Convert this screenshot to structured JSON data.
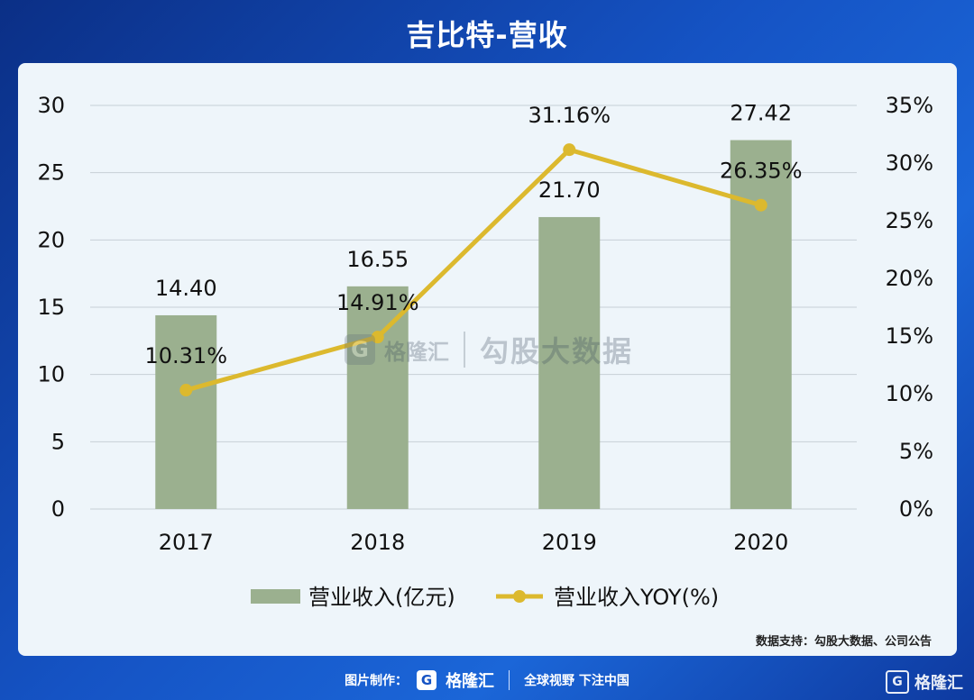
{
  "header": {
    "title": "吉比特-营收"
  },
  "chart_data": {
    "type": "bar",
    "categories": [
      "2017",
      "2018",
      "2019",
      "2020"
    ],
    "series": [
      {
        "name": "营业收入(亿元)",
        "type": "bar",
        "axis": "left",
        "color": "#9bb08f",
        "values": [
          14.4,
          16.55,
          21.7,
          27.42
        ],
        "labels": [
          "14.40",
          "16.55",
          "21.70",
          "27.42"
        ]
      },
      {
        "name": "营业收入YOY(%)",
        "type": "line",
        "axis": "right",
        "color": "#dcb92e",
        "values": [
          10.31,
          14.91,
          31.16,
          26.35
        ],
        "labels": [
          "10.31%",
          "14.91%",
          "31.16%",
          "26.35%"
        ]
      }
    ],
    "left_axis": {
      "min": 0,
      "max": 30,
      "step": 5,
      "ticks": [
        "0",
        "5",
        "10",
        "15",
        "20",
        "25",
        "30"
      ]
    },
    "right_axis": {
      "min": 0,
      "max": 35,
      "step": 5,
      "ticks": [
        "0%",
        "5%",
        "10%",
        "15%",
        "20%",
        "25%",
        "30%",
        "35%"
      ]
    },
    "grid": true,
    "legend_position": "bottom"
  },
  "watermark": {
    "logo": "G",
    "brand": "格隆汇",
    "name": "勾股大数据"
  },
  "source": "数据支持：勾股大数据、公司公告",
  "footer": {
    "made_by": "图片制作：",
    "logo": "G",
    "brand": "格隆汇",
    "slogan": "全球视野 下注中国"
  },
  "corner": {
    "logo": "G",
    "brand": "格隆汇"
  }
}
